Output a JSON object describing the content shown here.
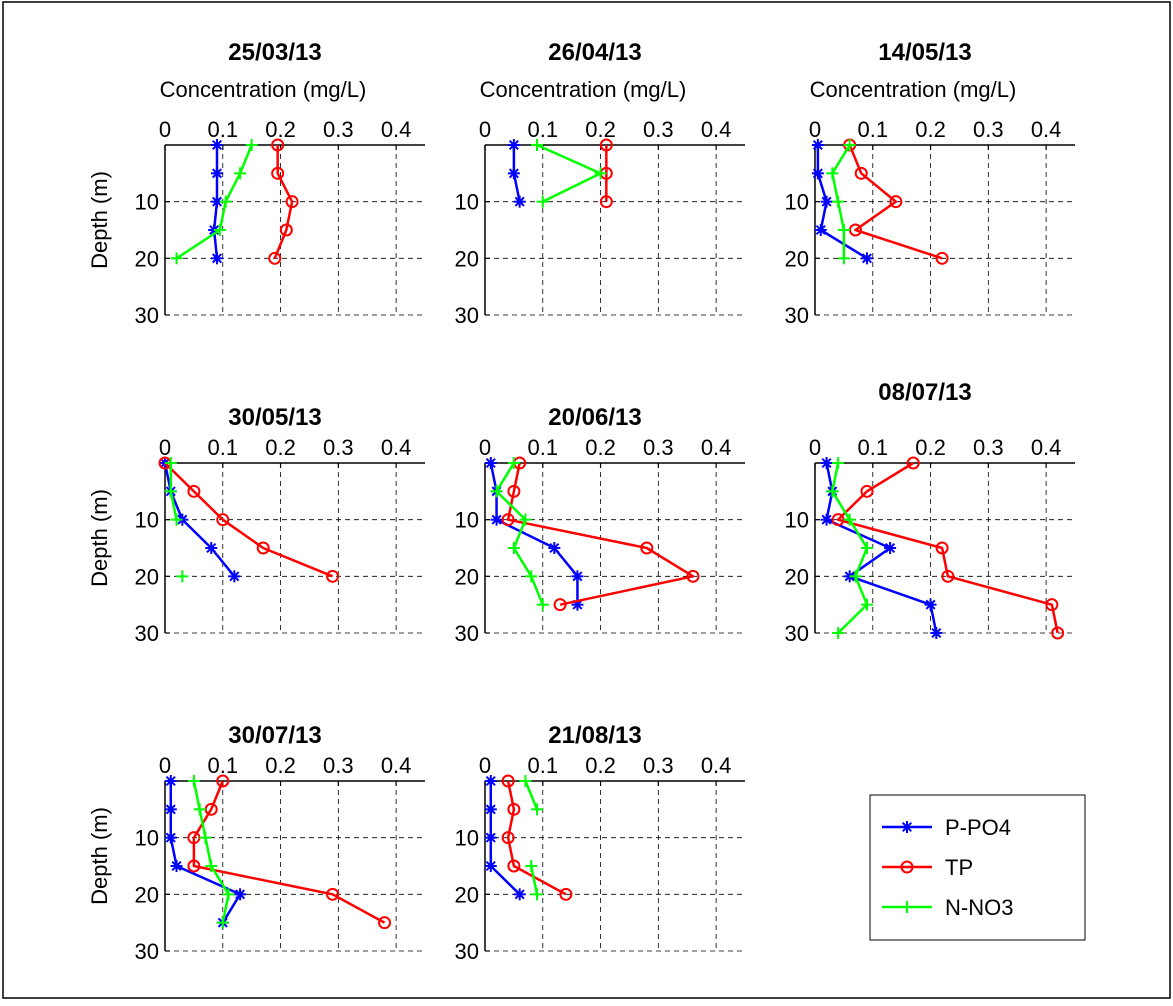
{
  "figure": {
    "xlabel": "Concentration (mg/L)",
    "ylabel": "Depth (m)",
    "legend": {
      "placement": "bottom-right",
      "entries": [
        "P-PO4",
        "TP",
        "N-NO3"
      ]
    }
  },
  "series_styles": [
    {
      "name": "P-PO4",
      "color": "#0000ff",
      "marker": "asterisk"
    },
    {
      "name": "TP",
      "color": "#ff0000",
      "marker": "circle"
    },
    {
      "name": "N-NO3",
      "color": "#00ff00",
      "marker": "plus"
    }
  ],
  "chart_data": [
    {
      "type": "line",
      "title": "25/03/13",
      "xlabel": "Concentration (mg/L)",
      "ylabel": "Depth (m)",
      "xlim": [
        0,
        0.45
      ],
      "ylim": [
        0,
        30
      ],
      "y_reversed": true,
      "grid": true,
      "xticks": [
        "0",
        "0.1",
        "0.2",
        "0.3",
        "0.4"
      ],
      "yticks": [
        "10",
        "20",
        "30"
      ],
      "series": [
        {
          "name": "P-PO4",
          "points": [
            [
              0.09,
              0
            ],
            [
              0.09,
              5
            ],
            [
              0.09,
              10
            ],
            [
              0.085,
              15
            ],
            [
              0.09,
              20
            ]
          ]
        },
        {
          "name": "TP",
          "points": [
            [
              0.195,
              0
            ],
            [
              0.195,
              5
            ],
            [
              0.22,
              10
            ],
            [
              0.21,
              15
            ],
            [
              0.19,
              20
            ]
          ]
        },
        {
          "name": "N-NO3",
          "points": [
            [
              0.15,
              0
            ],
            [
              0.13,
              5
            ],
            [
              0.105,
              10
            ],
            [
              0.095,
              15
            ],
            [
              0.02,
              20
            ]
          ]
        }
      ]
    },
    {
      "type": "line",
      "title": "26/04/13",
      "xlabel": "Concentration (mg/L)",
      "ylabel": "",
      "xlim": [
        0,
        0.45
      ],
      "ylim": [
        0,
        30
      ],
      "y_reversed": true,
      "grid": true,
      "xticks": [
        "0",
        "0.1",
        "0.2",
        "0.3",
        "0.4"
      ],
      "yticks": [
        "10",
        "20",
        "30"
      ],
      "series": [
        {
          "name": "P-PO4",
          "points": [
            [
              0.05,
              0
            ],
            [
              0.05,
              5
            ],
            [
              0.06,
              10
            ]
          ]
        },
        {
          "name": "TP",
          "points": [
            [
              0.21,
              0
            ],
            [
              0.21,
              5
            ],
            [
              0.21,
              10
            ]
          ]
        },
        {
          "name": "N-NO3",
          "points": [
            [
              0.09,
              0
            ],
            [
              0.2,
              5
            ],
            [
              0.1,
              10
            ]
          ]
        }
      ]
    },
    {
      "type": "line",
      "title": "14/05/13",
      "xlabel": "Concentration (mg/L)",
      "ylabel": "",
      "xlim": [
        0,
        0.45
      ],
      "ylim": [
        0,
        30
      ],
      "y_reversed": true,
      "grid": true,
      "xticks": [
        "0",
        "0.1",
        "0.2",
        "0.3",
        "0.4"
      ],
      "yticks": [
        "10",
        "20",
        "30"
      ],
      "series": [
        {
          "name": "P-PO4",
          "points": [
            [
              0.005,
              0
            ],
            [
              0.005,
              5
            ],
            [
              0.02,
              10
            ],
            [
              0.01,
              15
            ],
            [
              0.09,
              20
            ]
          ]
        },
        {
          "name": "TP",
          "points": [
            [
              0.06,
              0
            ],
            [
              0.08,
              5
            ],
            [
              0.14,
              10
            ],
            [
              0.07,
              15
            ],
            [
              0.22,
              20
            ]
          ]
        },
        {
          "name": "N-NO3",
          "points": [
            [
              0.06,
              0
            ],
            [
              0.03,
              5
            ],
            [
              0.04,
              10
            ],
            [
              0.05,
              15
            ],
            [
              0.05,
              20
            ]
          ]
        }
      ]
    },
    {
      "type": "line",
      "title": "30/05/13",
      "xlabel": "",
      "ylabel": "Depth (m)",
      "xlim": [
        0,
        0.45
      ],
      "ylim": [
        0,
        30
      ],
      "y_reversed": true,
      "grid": true,
      "xticks": [
        "0",
        "0.1",
        "0.2",
        "0.3",
        "0.4"
      ],
      "yticks": [
        "10",
        "20",
        "30"
      ],
      "series": [
        {
          "name": "P-PO4",
          "points": [
            [
              0,
              0
            ],
            [
              0.01,
              5
            ],
            [
              0.03,
              10
            ],
            [
              0.08,
              15
            ],
            [
              0.12,
              20
            ]
          ]
        },
        {
          "name": "TP",
          "points": [
            [
              0,
              0
            ],
            [
              0.05,
              5
            ],
            [
              0.1,
              10
            ],
            [
              0.17,
              15
            ],
            [
              0.29,
              20
            ]
          ]
        },
        {
          "name": "N-NO3",
          "points": [
            [
              0.01,
              0
            ],
            [
              0.01,
              5
            ],
            [
              0.02,
              10
            ],
            [
              null,
              15
            ],
            [
              0.03,
              20
            ]
          ]
        }
      ]
    },
    {
      "type": "line",
      "title": "20/06/13",
      "xlabel": "",
      "ylabel": "",
      "xlim": [
        0,
        0.45
      ],
      "ylim": [
        0,
        30
      ],
      "y_reversed": true,
      "grid": true,
      "xticks": [
        "0",
        "0.1",
        "0.2",
        "0.3",
        "0.4"
      ],
      "yticks": [
        "10",
        "20",
        "30"
      ],
      "series": [
        {
          "name": "P-PO4",
          "points": [
            [
              0.01,
              0
            ],
            [
              0.02,
              5
            ],
            [
              0.02,
              10
            ],
            [
              0.12,
              15
            ],
            [
              0.16,
              20
            ],
            [
              0.16,
              25
            ]
          ]
        },
        {
          "name": "TP",
          "points": [
            [
              0.06,
              0
            ],
            [
              0.05,
              5
            ],
            [
              0.04,
              10
            ],
            [
              0.28,
              15
            ],
            [
              0.36,
              20
            ],
            [
              0.13,
              25
            ]
          ]
        },
        {
          "name": "N-NO3",
          "points": [
            [
              0.05,
              0
            ],
            [
              0.02,
              5
            ],
            [
              0.07,
              10
            ],
            [
              0.05,
              15
            ],
            [
              0.08,
              20
            ],
            [
              0.1,
              25
            ]
          ]
        }
      ]
    },
    {
      "type": "line",
      "title": "08/07/13",
      "xlabel": "",
      "ylabel": "",
      "xlim": [
        0,
        0.45
      ],
      "ylim": [
        0,
        30
      ],
      "y_reversed": true,
      "grid": true,
      "xticks": [
        "0",
        "0.1",
        "0.2",
        "0.3",
        "0.4"
      ],
      "yticks": [
        "10",
        "20",
        "30"
      ],
      "series": [
        {
          "name": "P-PO4",
          "points": [
            [
              0.02,
              0
            ],
            [
              0.03,
              5
            ],
            [
              0.02,
              10
            ],
            [
              0.13,
              15
            ],
            [
              0.06,
              20
            ],
            [
              0.2,
              25
            ],
            [
              0.21,
              30
            ]
          ]
        },
        {
          "name": "TP",
          "points": [
            [
              0.17,
              0
            ],
            [
              0.09,
              5
            ],
            [
              0.04,
              10
            ],
            [
              0.22,
              15
            ],
            [
              0.23,
              20
            ],
            [
              0.41,
              25
            ],
            [
              0.42,
              30
            ]
          ]
        },
        {
          "name": "N-NO3",
          "points": [
            [
              0.04,
              0
            ],
            [
              0.03,
              5
            ],
            [
              0.06,
              10
            ],
            [
              0.09,
              15
            ],
            [
              0.07,
              20
            ],
            [
              0.09,
              25
            ],
            [
              0.04,
              30
            ]
          ]
        }
      ]
    },
    {
      "type": "line",
      "title": "30/07/13",
      "xlabel": "",
      "ylabel": "Depth (m)",
      "xlim": [
        0,
        0.45
      ],
      "ylim": [
        0,
        30
      ],
      "y_reversed": true,
      "grid": true,
      "xticks": [
        "0",
        "0.1",
        "0.2",
        "0.3",
        "0.4"
      ],
      "yticks": [
        "10",
        "20",
        "30"
      ],
      "series": [
        {
          "name": "P-PO4",
          "points": [
            [
              0.01,
              0
            ],
            [
              0.01,
              5
            ],
            [
              0.01,
              10
            ],
            [
              0.02,
              15
            ],
            [
              0.13,
              20
            ],
            [
              0.1,
              25
            ]
          ]
        },
        {
          "name": "TP",
          "points": [
            [
              0.1,
              0
            ],
            [
              0.08,
              5
            ],
            [
              0.05,
              10
            ],
            [
              0.05,
              15
            ],
            [
              0.29,
              20
            ],
            [
              0.38,
              25
            ]
          ]
        },
        {
          "name": "N-NO3",
          "points": [
            [
              0.05,
              0
            ],
            [
              0.06,
              5
            ],
            [
              0.07,
              10
            ],
            [
              0.08,
              15
            ],
            [
              0.11,
              20
            ],
            [
              0.1,
              25
            ]
          ]
        }
      ]
    },
    {
      "type": "line",
      "title": "21/08/13",
      "xlabel": "",
      "ylabel": "",
      "xlim": [
        0,
        0.45
      ],
      "ylim": [
        0,
        30
      ],
      "y_reversed": true,
      "grid": true,
      "xticks": [
        "0",
        "0.1",
        "0.2",
        "0.3",
        "0.4"
      ],
      "yticks": [
        "10",
        "20",
        "30"
      ],
      "series": [
        {
          "name": "P-PO4",
          "points": [
            [
              0.01,
              0
            ],
            [
              0.01,
              5
            ],
            [
              0.01,
              10
            ],
            [
              0.01,
              15
            ],
            [
              0.06,
              20
            ]
          ]
        },
        {
          "name": "TP",
          "points": [
            [
              0.04,
              0
            ],
            [
              0.05,
              5
            ],
            [
              0.04,
              10
            ],
            [
              0.05,
              15
            ],
            [
              0.14,
              20
            ]
          ]
        },
        {
          "name": "N-NO3",
          "points": [
            [
              0.07,
              0
            ],
            [
              0.09,
              5
            ],
            [
              null,
              10
            ],
            [
              0.08,
              15
            ],
            [
              0.09,
              20
            ]
          ]
        }
      ]
    }
  ]
}
